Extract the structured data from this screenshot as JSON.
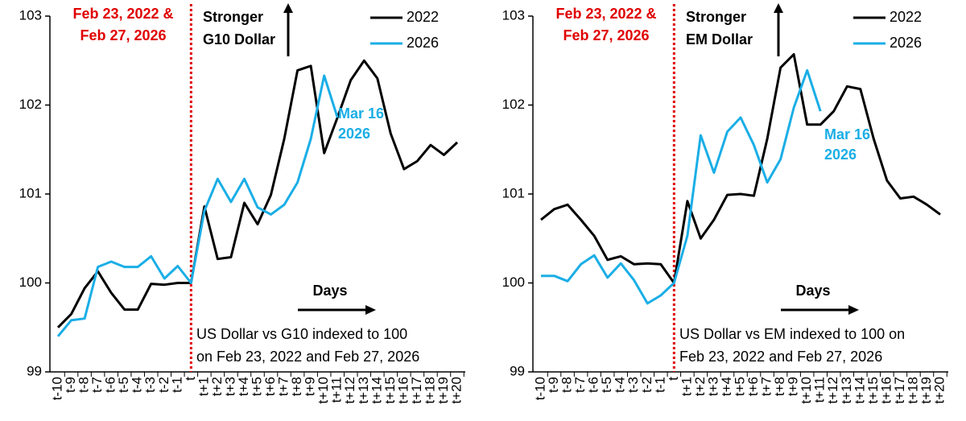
{
  "chart_data": [
    {
      "type": "line",
      "categories": [
        "t-10",
        "t-9",
        "t-8",
        "t-7",
        "t-6",
        "t-5",
        "t-4",
        "t-3",
        "t-2",
        "t-1",
        "t",
        "t+1",
        "t+2",
        "t+3",
        "t+4",
        "t+5",
        "t+6",
        "t+7",
        "t+8",
        "t+9",
        "t+10",
        "t+11",
        "t+12",
        "t+13",
        "t+14",
        "t+15",
        "t+16",
        "t+17",
        "t+18",
        "t+19",
        "t+20"
      ],
      "series": [
        {
          "name": "2022",
          "color": "#000000",
          "values": [
            99.5,
            99.65,
            99.94,
            100.13,
            99.89,
            99.7,
            99.7,
            99.99,
            99.98,
            100.0,
            100.0,
            100.86,
            100.27,
            100.29,
            100.9,
            100.66,
            100.99,
            101.62,
            102.39,
            102.44,
            101.46,
            101.86,
            102.28,
            102.5,
            102.3,
            101.68,
            101.28,
            101.37,
            101.55,
            101.44,
            101.58
          ]
        },
        {
          "name": "2026",
          "color": "#1aaee6",
          "values": [
            99.4,
            99.58,
            99.6,
            100.18,
            100.24,
            100.18,
            100.18,
            100.3,
            100.05,
            100.19,
            100.0,
            100.81,
            101.17,
            100.91,
            101.17,
            100.85,
            100.77,
            100.88,
            101.13,
            101.62,
            102.33,
            101.86,
            null,
            null,
            null,
            null,
            null,
            null,
            null,
            null,
            null
          ]
        }
      ],
      "ylim": [
        99,
        103
      ],
      "yticks": [
        99,
        100,
        101,
        102,
        103
      ],
      "legend": "upper right",
      "annotations": {
        "event": [
          "Feb 23, 2022 &",
          "Feb 27, 2026"
        ],
        "direction": [
          "Stronger",
          "G10 Dollar"
        ],
        "latest": [
          "Mar 16",
          "2026"
        ],
        "axis_note": "Days",
        "note": [
          "US Dollar vs G10 indexed to 100",
          "on Feb 23, 2022 and Feb 27, 2026"
        ]
      }
    },
    {
      "type": "line",
      "categories": [
        "t-10",
        "t-9",
        "t-8",
        "t-7",
        "t-6",
        "t-5",
        "t-4",
        "t-3",
        "t-2",
        "t-1",
        "t",
        "t+1",
        "t+2",
        "t+3",
        "t+4",
        "t+5",
        "t+6",
        "t+7",
        "t+8",
        "t+9",
        "t+10",
        "t+11",
        "t+12",
        "t+13",
        "t+14",
        "t+15",
        "t+16",
        "t+17",
        "t+18",
        "t+19",
        "t+20"
      ],
      "series": [
        {
          "name": "2022",
          "color": "#000000",
          "values": [
            100.71,
            100.83,
            100.88,
            100.71,
            100.53,
            100.26,
            100.3,
            100.21,
            100.22,
            100.21,
            100.0,
            100.92,
            100.5,
            100.71,
            100.99,
            101.0,
            100.98,
            101.62,
            102.42,
            102.57,
            101.78,
            101.78,
            101.93,
            102.21,
            102.18,
            101.62,
            101.15,
            100.95,
            100.97,
            100.88,
            100.77
          ]
        },
        {
          "name": "2026",
          "color": "#1aaee6",
          "values": [
            100.08,
            100.08,
            100.02,
            100.21,
            100.31,
            100.06,
            100.22,
            100.03,
            99.77,
            99.86,
            100.0,
            100.53,
            101.66,
            101.24,
            101.7,
            101.86,
            101.55,
            101.13,
            101.39,
            101.97,
            102.39,
            101.93,
            null,
            null,
            null,
            null,
            null,
            null,
            null,
            null,
            null
          ]
        }
      ],
      "ylim": [
        99,
        103
      ],
      "yticks": [
        99,
        100,
        101,
        102,
        103
      ],
      "legend": "upper right",
      "annotations": {
        "event": [
          "Feb 23, 2022 &",
          "Feb 27, 2026"
        ],
        "direction": [
          "Stronger",
          "EM Dollar"
        ],
        "latest": [
          "Mar 16",
          "2026"
        ],
        "axis_note": "Days",
        "note": [
          "US Dollar vs EM indexed to 100 on",
          "Feb 23, 2022 and Feb 27, 2026"
        ]
      }
    }
  ]
}
